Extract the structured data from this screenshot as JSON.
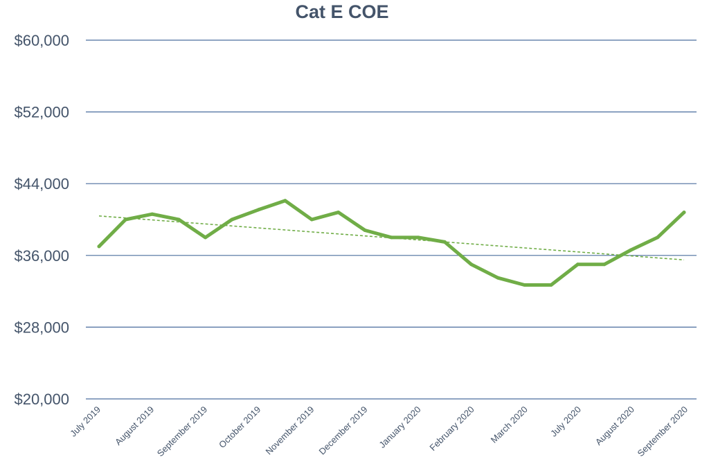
{
  "chart_data": {
    "type": "line",
    "title": "Cat E COE",
    "xlabel": "",
    "ylabel": "",
    "ylim": [
      20000,
      60000
    ],
    "yticks": [
      "$20,000",
      "$28,000",
      "$36,000",
      "$44,000",
      "$52,000",
      "$60,000"
    ],
    "ytick_values": [
      20000,
      28000,
      36000,
      44000,
      52000,
      60000
    ],
    "xticks": [
      "July 2019",
      "August 2019",
      "September 2019",
      "October 2019",
      "November 2019",
      "December 2019",
      "January 2020",
      "February 2020",
      "March 2020",
      "July 2020",
      "August 2020",
      "September 2020"
    ],
    "grid": true,
    "legend": "none",
    "series": [
      {
        "values": [
          37000,
          40000,
          40600,
          40000,
          38000,
          40000,
          41100,
          42100,
          40000,
          40800,
          38800,
          38000,
          38000,
          37500,
          35000,
          33500,
          32700,
          32700,
          35000,
          35000,
          36600,
          38000,
          40800
        ],
        "color": "#70ad47"
      }
    ],
    "trendline": {
      "type": "linear",
      "color": "#70ad47",
      "style": "dashed",
      "start": 40400,
      "end": 35500
    }
  }
}
